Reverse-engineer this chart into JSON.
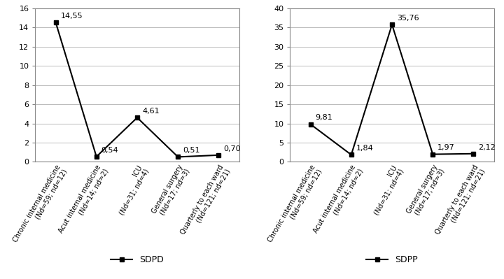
{
  "categories": [
    "Chronic internal medicine\n(Nd=59; nd=12)",
    "Acut internal medicine\n(Nd=14; nd=2)",
    "ICU\n(Nd=31; nd=4)",
    "General surgery\n(Nd=17; nd=3)",
    "Quarterly to each ward\n(Nd=121; nd=21)"
  ],
  "sdpd_values": [
    14.55,
    0.54,
    4.61,
    0.51,
    0.7
  ],
  "sdpp_values": [
    9.81,
    1.84,
    35.76,
    1.97,
    2.12
  ],
  "sdpd_labels": [
    "14,55",
    "0,54",
    "4,61",
    "0,51",
    "0,70"
  ],
  "sdpp_labels": [
    "9,81",
    "1,84",
    "35,76",
    "1,97",
    "2,12"
  ],
  "sdpd_yticks": [
    0,
    2,
    4,
    6,
    8,
    10,
    12,
    14,
    16
  ],
  "sdpp_yticks": [
    0,
    5,
    10,
    15,
    20,
    25,
    30,
    35,
    40
  ],
  "legend_sdpd": "SDPD",
  "legend_sdpp": "SDPP",
  "line_color": "#000000",
  "marker_style": "s",
  "marker_size": 4,
  "background_color": "#ffffff",
  "grid_color": "#bbbbbb",
  "font_size_tick": 8,
  "font_size_label": 7,
  "font_size_annot": 8,
  "font_size_legend": 9
}
